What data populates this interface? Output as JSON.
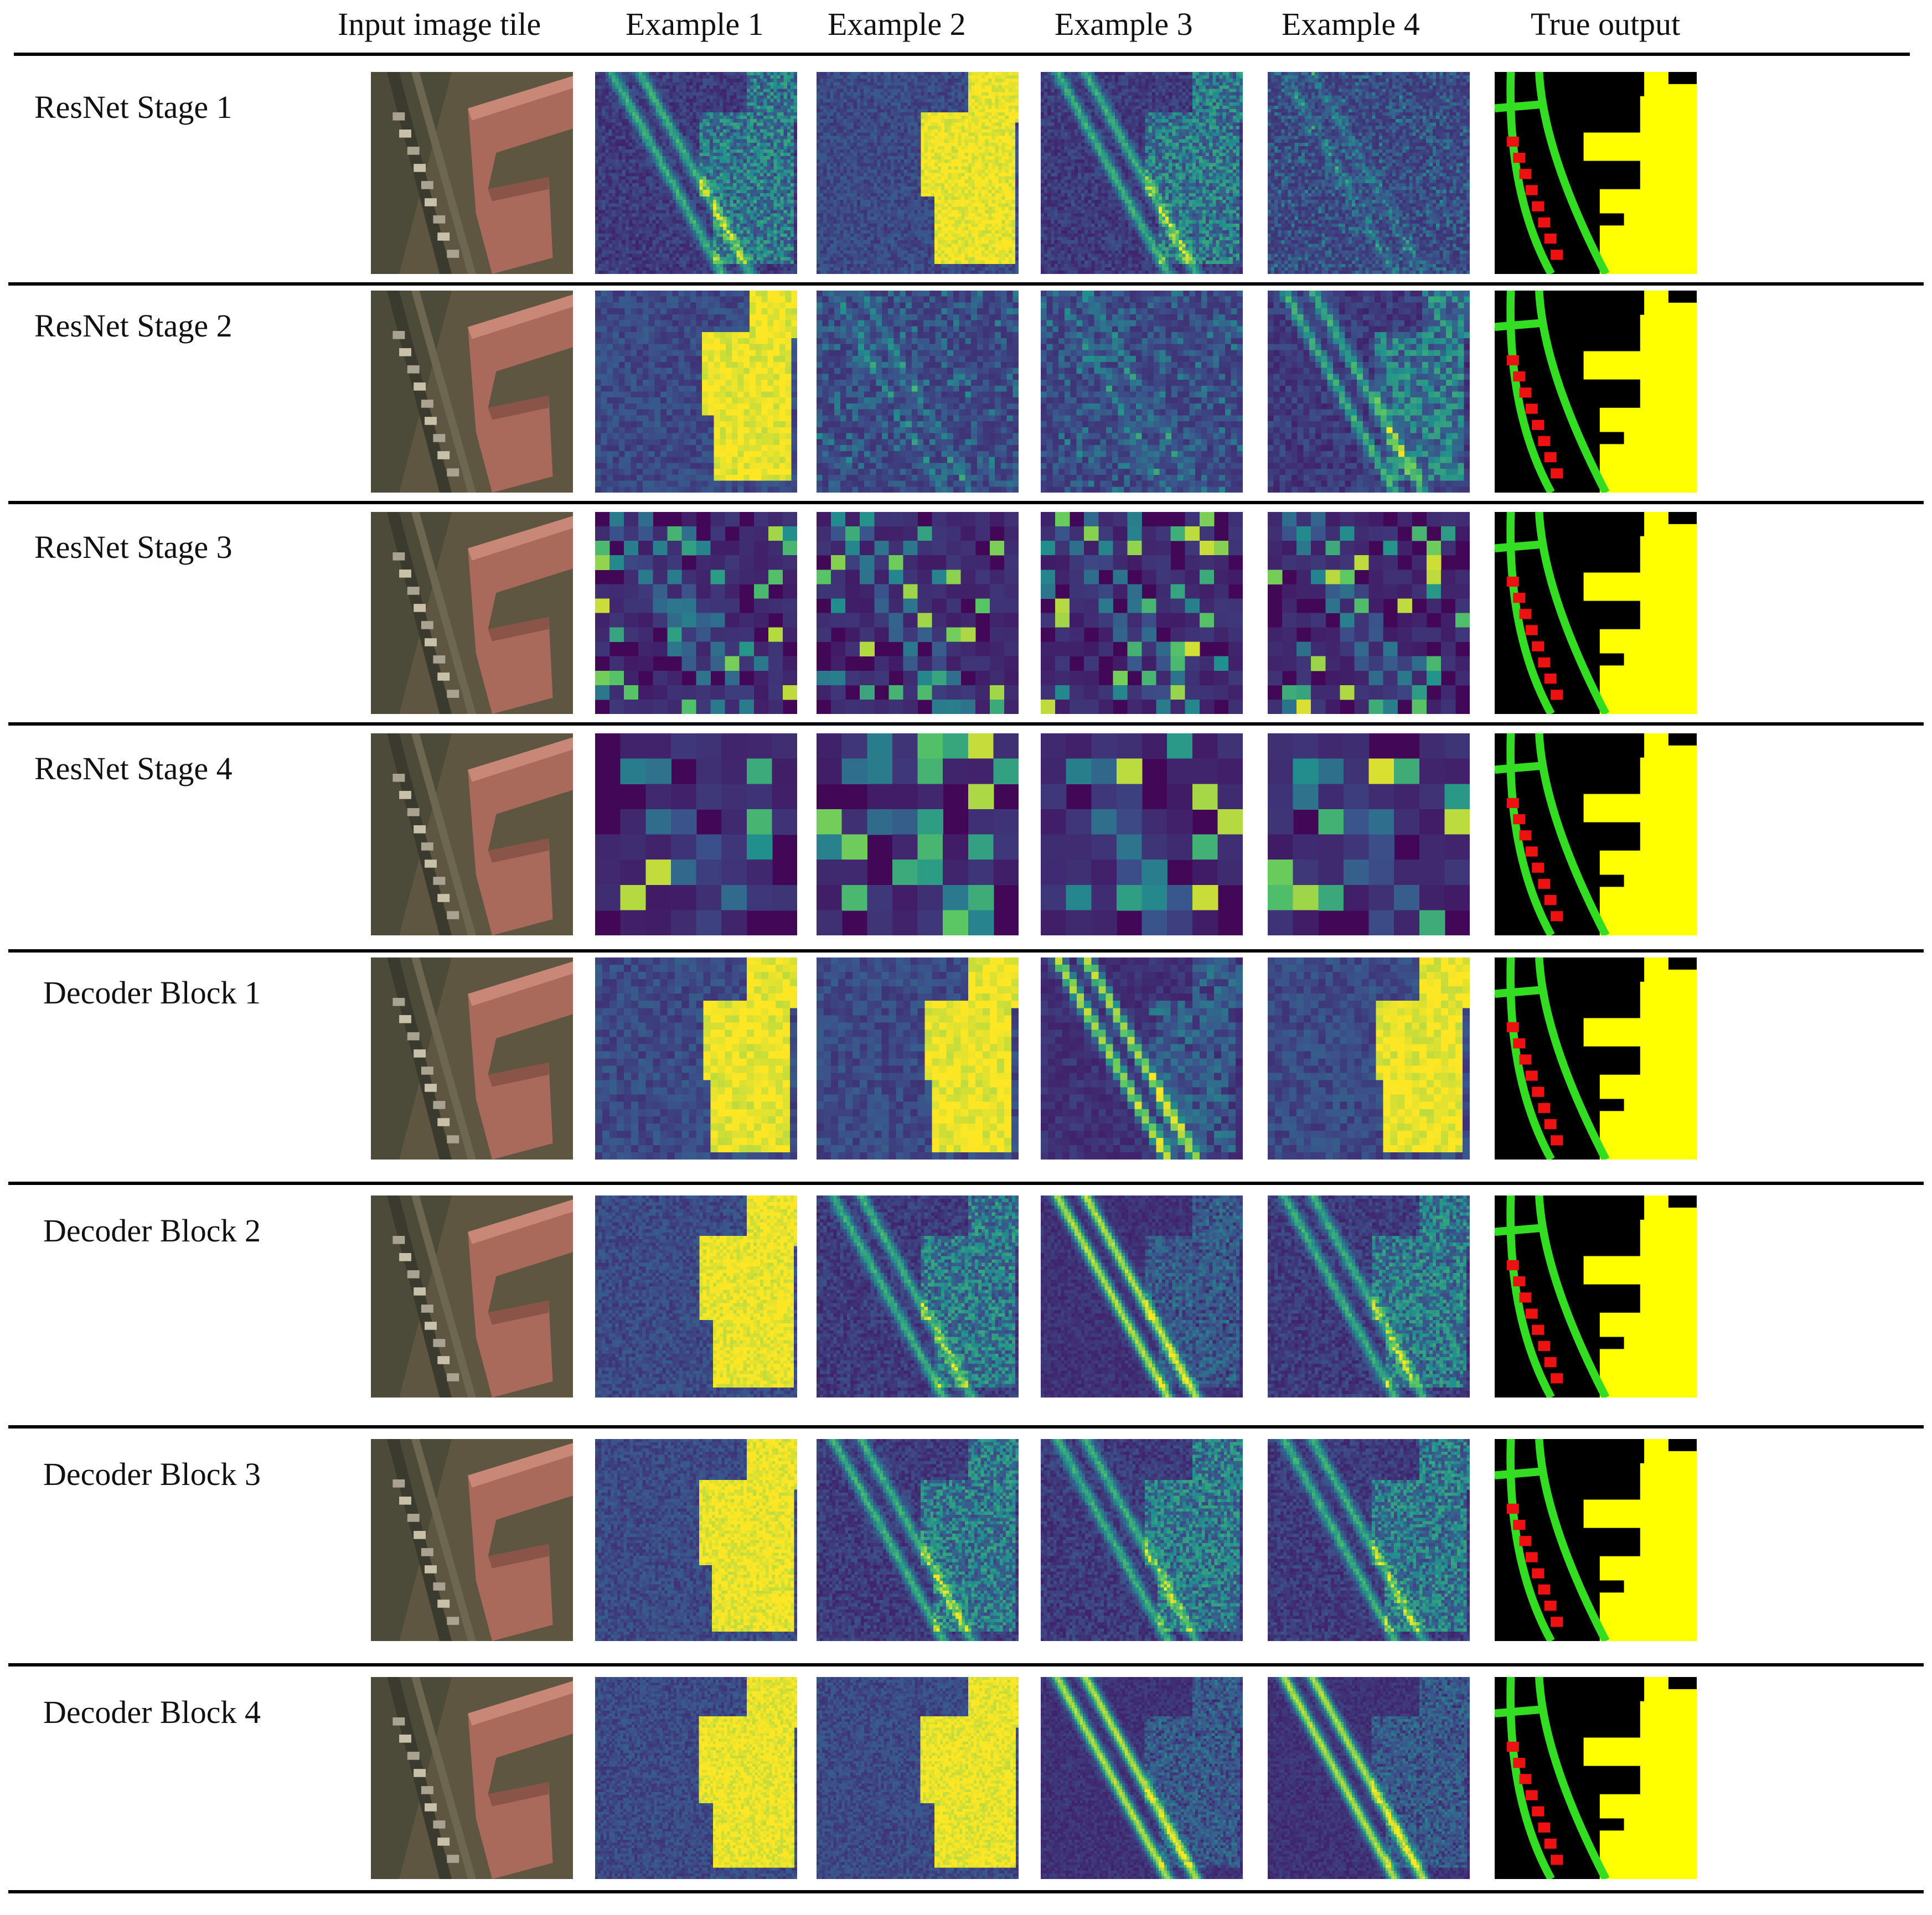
{
  "columns": [
    "Input image tile",
    "Example 1",
    "Example 2",
    "Example 3",
    "Example 4",
    "True output"
  ],
  "rows": [
    "ResNet Stage 1",
    "ResNet Stage 2",
    "ResNet Stage 3",
    "ResNet Stage 4",
    "Decoder Block 1",
    "Decoder Block 2",
    "Decoder Block 3",
    "Decoder Block 4"
  ],
  "colormap": [
    "#440154",
    "#3b528b",
    "#21908d",
    "#5dc962",
    "#fde725"
  ],
  "legend_colors": {
    "background": "#000000",
    "building": "#ffff00",
    "road": "#33dd22",
    "small_structure": "#ee1111"
  }
}
